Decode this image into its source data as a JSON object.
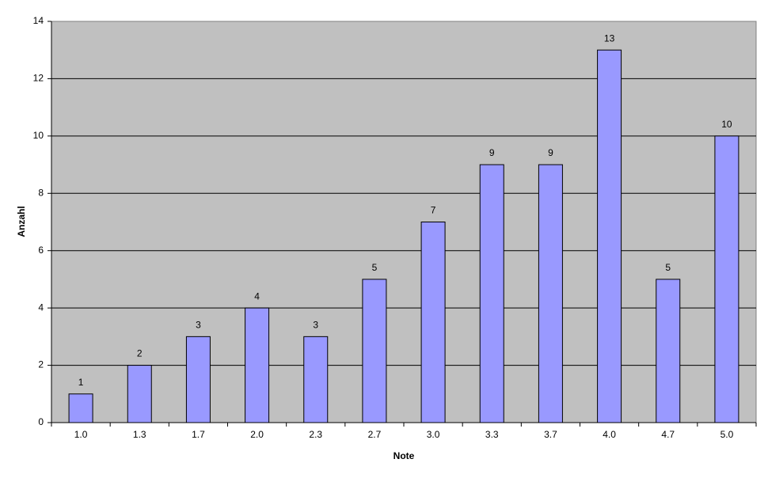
{
  "chart_data": {
    "type": "bar",
    "x_label": "Note",
    "y_label": "Anzahl",
    "categories": [
      "1.0",
      "1.3",
      "1.7",
      "2.0",
      "2.3",
      "2.7",
      "3.0",
      "3.3",
      "3.7",
      "4.0",
      "4.7",
      "5.0"
    ],
    "values": [
      1,
      2,
      3,
      4,
      3,
      5,
      7,
      9,
      9,
      13,
      5,
      10
    ],
    "color": "#9999ff",
    "plot_background": "#c0c0c0",
    "ylim": [
      0,
      14
    ],
    "yticks": [
      0,
      2,
      4,
      6,
      8,
      10,
      12,
      14
    ],
    "grid": true
  }
}
